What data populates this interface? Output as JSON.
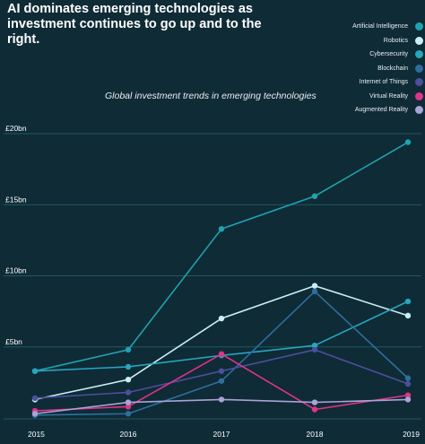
{
  "header": {
    "title": "AI dominates emerging technologies as investment continues to go up and to the right.",
    "subtitle": "Global investment trends in emerging technologies"
  },
  "chart_data": {
    "type": "line",
    "title": "AI dominates emerging technologies as investment continues to go up and to the right.",
    "subtitle": "Global investment trends in emerging technologies",
    "x": [
      "2015",
      "2016",
      "2017",
      "2018",
      "2019"
    ],
    "y_ticks": [
      "£5bn",
      "£10bn",
      "£15bn",
      "£20bn"
    ],
    "y_tick_values": [
      5,
      10,
      15,
      20
    ],
    "ylim": [
      0,
      20
    ],
    "grid": true,
    "legend_position": "top-right",
    "series": [
      {
        "name": "Artificial Intelligence",
        "color": "#1fa3b0",
        "values": [
          3.3,
          4.8,
          13.3,
          15.6,
          19.4
        ]
      },
      {
        "name": "Robotics",
        "color": "#c9eef6",
        "values": [
          1.3,
          2.7,
          7.0,
          9.3,
          7.2
        ]
      },
      {
        "name": "Cybersecurity",
        "color": "#27a6be",
        "values": [
          3.3,
          3.6,
          4.4,
          5.1,
          8.2
        ]
      },
      {
        "name": "Blockchain",
        "color": "#2e6e9e",
        "values": [
          0.2,
          0.3,
          2.6,
          8.9,
          2.8
        ]
      },
      {
        "name": "Internet of Things",
        "color": "#4b4f9c",
        "values": [
          1.4,
          1.8,
          3.3,
          4.8,
          2.4
        ]
      },
      {
        "name": "Virtual  Reality",
        "color": "#e0338a",
        "values": [
          0.5,
          0.8,
          4.5,
          0.6,
          1.6
        ]
      },
      {
        "name": "Augmented Reality",
        "color": "#a8a4d6",
        "values": [
          0.3,
          1.1,
          1.3,
          1.1,
          1.3
        ]
      }
    ]
  }
}
